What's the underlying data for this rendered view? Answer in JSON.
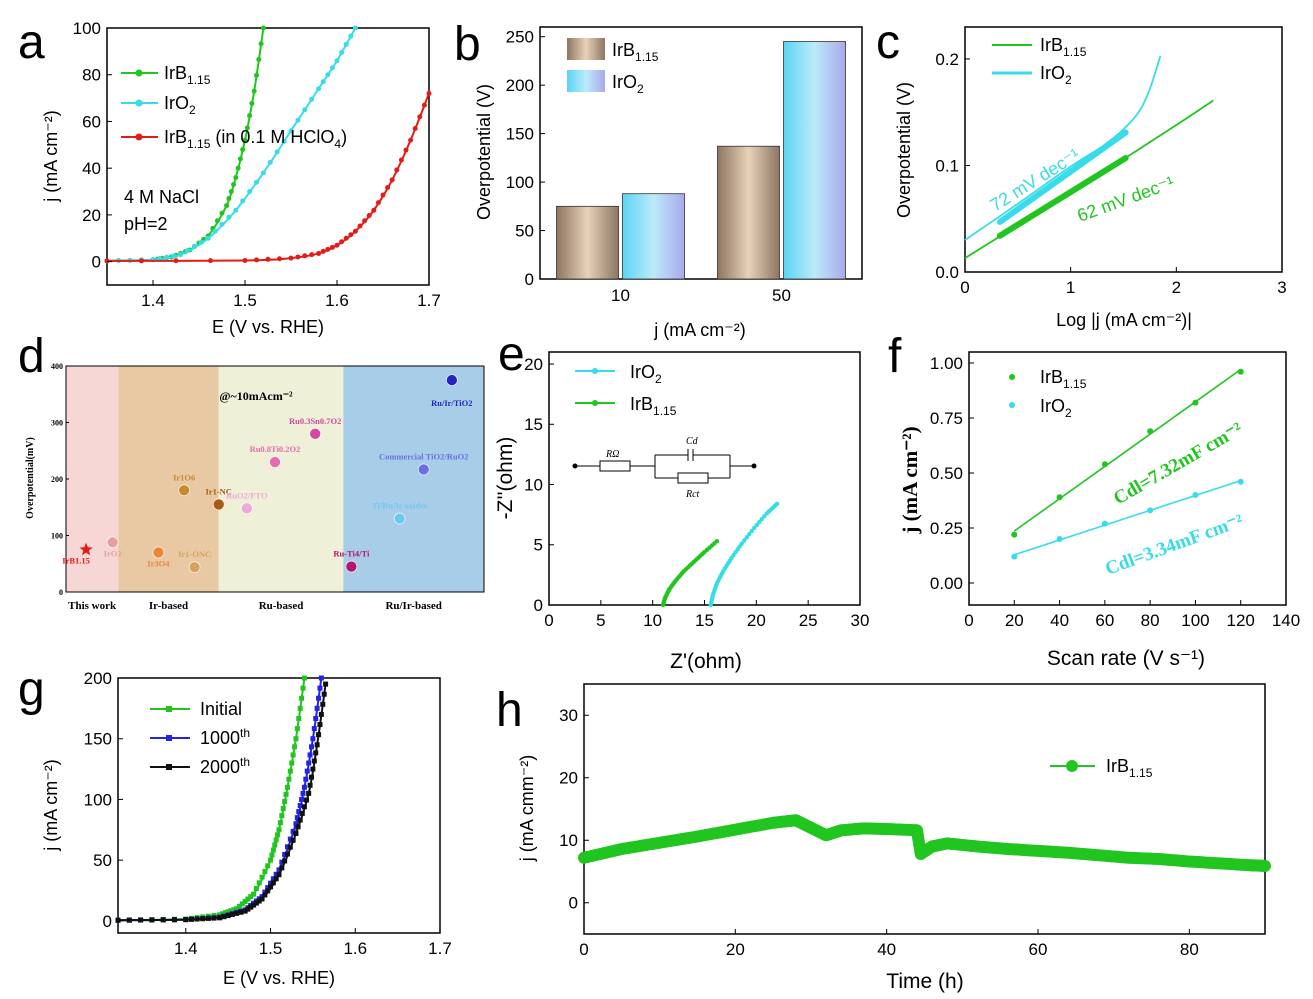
{
  "colors": {
    "green": "#21c51f",
    "cyan": "#36dcea",
    "red": "#e41b17",
    "blue": "#2323e6",
    "black": "#111111",
    "bar_brown": "#bf9f82",
    "bar_cyan": "#7fdcf2"
  },
  "chart_data": [
    {
      "id": "a",
      "panel_label": "a",
      "type": "line",
      "xlabel": "E (V vs. RHE)",
      "ylabel": "j (mA cm⁻²)",
      "xlim": [
        1.35,
        1.7
      ],
      "ylim": [
        -10,
        100
      ],
      "xticks": [
        "1.4",
        "1.5",
        "1.6",
        "1.7"
      ],
      "yticks": [
        "0",
        "20",
        "40",
        "60",
        "80",
        "100"
      ],
      "annotations": [
        "4 M NaCl",
        "pH=2"
      ],
      "series": [
        {
          "name": "IrB1.15",
          "label_main": "IrB",
          "label_sub": "1.15",
          "label_rest": "",
          "color": "#21c51f",
          "x": [
            1.35,
            1.4,
            1.42,
            1.44,
            1.46,
            1.48,
            1.49,
            1.5,
            1.51,
            1.52
          ],
          "y": [
            0.3,
            0.8,
            2,
            5,
            11,
            24,
            36,
            52,
            73,
            100
          ]
        },
        {
          "name": "IrO2",
          "label_main": "IrO",
          "label_sub": "2",
          "label_rest": "",
          "color": "#36dcea",
          "x": [
            1.35,
            1.4,
            1.43,
            1.46,
            1.49,
            1.52,
            1.55,
            1.58,
            1.6,
            1.62
          ],
          "y": [
            0.3,
            0.8,
            3,
            10,
            22,
            38,
            56,
            74,
            86,
            100
          ]
        },
        {
          "name": "IrB1.15 (in 0.1 M HClO4)",
          "label_main": "IrB",
          "label_sub": "1.15",
          "label_rest": " (in 0.1 M HClO",
          "label_sub2": "4",
          "label_end": ")",
          "color": "#e41b17",
          "x": [
            1.35,
            1.5,
            1.55,
            1.58,
            1.6,
            1.62,
            1.64,
            1.66,
            1.68,
            1.7
          ],
          "y": [
            0.3,
            0.5,
            1.5,
            3.5,
            7,
            13,
            22,
            35,
            52,
            72
          ]
        }
      ]
    },
    {
      "id": "b",
      "panel_label": "b",
      "type": "bar",
      "xlabel": "j (mA cm⁻²)",
      "ylabel": "Overpotential (V)",
      "categories": [
        "10",
        "50"
      ],
      "ylim": [
        0,
        260
      ],
      "yticks": [
        "0",
        "50",
        "100",
        "150",
        "200",
        "250"
      ],
      "series": [
        {
          "name": "IrB1.15",
          "label_main": "IrB",
          "label_sub": "1.15",
          "values": [
            75,
            137
          ],
          "color": "#bf9f82"
        },
        {
          "name": "IrO2",
          "label_main": "IrO",
          "label_sub": "2",
          "values": [
            88,
            245
          ],
          "color": "#7fdcf2"
        }
      ]
    },
    {
      "id": "c",
      "panel_label": "c",
      "type": "line",
      "xlabel": "Log |j (mA cm⁻²)|",
      "ylabel": "Overpotential (V)",
      "xlim": [
        0,
        3
      ],
      "ylim": [
        0,
        0.23
      ],
      "xticks": [
        "0",
        "1",
        "2",
        "3"
      ],
      "yticks": [
        "0.0",
        "0.1",
        "0.2"
      ],
      "annotations": [
        "72 mV dec⁻¹",
        "62 mV dec⁻¹"
      ],
      "series": [
        {
          "name": "IrB1.15",
          "label_main": "IrB",
          "label_sub": "1.15",
          "color": "#21c51f",
          "x": [
            0,
            0.5,
            1.0,
            1.5,
            2.0,
            2.35
          ],
          "y": [
            0.013,
            0.044,
            0.075,
            0.106,
            0.138,
            0.161
          ],
          "fit_x": [
            0.33,
            1.52
          ],
          "fit_y": [
            0.034,
            0.107
          ]
        },
        {
          "name": "IrO2",
          "label_main": "IrO",
          "label_sub": "2",
          "color": "#36dcea",
          "x": [
            0,
            0.5,
            1.0,
            1.3,
            1.5,
            1.65,
            1.75,
            1.85
          ],
          "y": [
            0.03,
            0.064,
            0.099,
            0.118,
            0.134,
            0.151,
            0.172,
            0.203
          ],
          "fit_x": [
            0.33,
            1.52
          ],
          "fit_y": [
            0.047,
            0.131
          ]
        }
      ]
    },
    {
      "id": "d",
      "panel_label": "d",
      "type": "scatter",
      "ylabel": "Overpotential(mV)",
      "ylim": [
        0,
        400
      ],
      "yticks": [
        "0",
        "100",
        "200",
        "300",
        "400"
      ],
      "annotation": "@~10mAcm⁻²",
      "groups": [
        "This work",
        "Ir-based",
        "Ru-based",
        "Ru/Ir-based"
      ],
      "group_colors": [
        "#f7d6d6",
        "#e9c8a4",
        "#eef0d8",
        "#a8cde9"
      ],
      "points": [
        {
          "label": "IrB1.15",
          "x": 0.25,
          "y": 75,
          "color": "#e41b17",
          "marker": "star"
        },
        {
          "label": "IrO2",
          "x": 0.58,
          "y": 88,
          "color": "#e7a0a0"
        },
        {
          "label": "Ir3O4",
          "x": 1.15,
          "y": 70,
          "color": "#e8893a"
        },
        {
          "label": "Ir1O6",
          "x": 1.47,
          "y": 180,
          "color": "#c88a2a"
        },
        {
          "label": "Ir1-ONC",
          "x": 1.6,
          "y": 44,
          "color": "#d4a45a"
        },
        {
          "label": "Ir1-NC",
          "x": 1.9,
          "y": 155,
          "color": "#a85a12"
        },
        {
          "label": "RuO2/FTO",
          "x": 2.25,
          "y": 148,
          "color": "#f0a8d8"
        },
        {
          "label": "Ru0.8Ti0.2O2",
          "x": 2.6,
          "y": 230,
          "color": "#e66cb0"
        },
        {
          "label": "Ru0.3Sn0.7O2",
          "x": 3.1,
          "y": 280,
          "color": "#d348a0"
        },
        {
          "label": "Ru-Ti4/Ti",
          "x": 3.55,
          "y": 45,
          "color": "#b01770"
        },
        {
          "label": "Ti/Ru/Ir oxides",
          "x": 4.15,
          "y": 130,
          "color": "#6ec8ee"
        },
        {
          "label": "Commercial TiO2/RuO2",
          "x": 4.45,
          "y": 217,
          "color": "#6c6ee6"
        },
        {
          "label": "Ru/Ir/TiO2",
          "x": 4.8,
          "y": 375,
          "color": "#2424c0"
        }
      ]
    },
    {
      "id": "e",
      "panel_label": "e",
      "type": "line",
      "xlabel": "Z'(ohm)",
      "ylabel": "-Z''(ohm)",
      "xlim": [
        0,
        30
      ],
      "ylim": [
        0,
        21
      ],
      "xticks": [
        "0",
        "5",
        "10",
        "15",
        "20",
        "25",
        "30"
      ],
      "yticks": [
        "0",
        "5",
        "10",
        "15",
        "20"
      ],
      "circuit_labels": [
        "RΩ",
        "Cd",
        "Rct"
      ],
      "series": [
        {
          "name": "IrO2",
          "label_main": "IrO",
          "label_sub": "2",
          "color": "#36dcea",
          "x": [
            15.6,
            15.8,
            16.2,
            16.8,
            17.6,
            18.6,
            19.8,
            21.0,
            22.0
          ],
          "y": [
            0,
            0.8,
            1.8,
            2.8,
            3.9,
            5.1,
            6.4,
            7.6,
            8.4
          ]
        },
        {
          "name": "IrB1.15",
          "label_main": "IrB",
          "label_sub": "1.15",
          "color": "#21c51f",
          "x": [
            11.0,
            11.2,
            11.6,
            12.2,
            13.0,
            14.0,
            15.0,
            16.2
          ],
          "y": [
            0,
            0.6,
            1.3,
            2.0,
            2.8,
            3.6,
            4.4,
            5.3
          ]
        }
      ]
    },
    {
      "id": "f",
      "panel_label": "f",
      "type": "scatter",
      "xlabel": "Scan rate (V s⁻¹)",
      "ylabel": "j (mA cm⁻²)",
      "xlim": [
        0,
        140
      ],
      "ylim": [
        -0.1,
        1.05
      ],
      "xticks": [
        "0",
        "20",
        "40",
        "60",
        "80",
        "100",
        "120",
        "140"
      ],
      "yticks": [
        "0.00",
        "0.25",
        "0.50",
        "0.75",
        "1.00"
      ],
      "annotations": [
        "Cdl=7.32mF cm⁻²",
        "Cdl=3.34mF cm⁻²"
      ],
      "series": [
        {
          "name": "IrB1.15",
          "label_main": "IrB",
          "label_sub": "1.15",
          "color": "#21c51f",
          "x": [
            20,
            40,
            60,
            80,
            100,
            120
          ],
          "y": [
            0.22,
            0.39,
            0.54,
            0.69,
            0.82,
            0.96
          ]
        },
        {
          "name": "IrO2",
          "label_main": "IrO",
          "label_sub": "2",
          "color": "#36dcea",
          "x": [
            20,
            40,
            60,
            80,
            100,
            120
          ],
          "y": [
            0.12,
            0.2,
            0.27,
            0.33,
            0.4,
            0.46
          ]
        }
      ]
    },
    {
      "id": "g",
      "panel_label": "g",
      "type": "line",
      "xlabel": "E (V vs. RHE)",
      "ylabel": "j (mA cm⁻²)",
      "xlim": [
        1.32,
        1.7
      ],
      "ylim": [
        -10,
        200
      ],
      "xticks": [
        "1.4",
        "1.5",
        "1.6",
        "1.7"
      ],
      "yticks": [
        "0",
        "50",
        "100",
        "150",
        "200"
      ],
      "series": [
        {
          "name": "Initial",
          "label_main": "Initial",
          "label_sup": "",
          "color": "#21c51f",
          "x": [
            1.32,
            1.4,
            1.44,
            1.46,
            1.48,
            1.5,
            1.51,
            1.52,
            1.53,
            1.54
          ],
          "y": [
            0.5,
            1.5,
            5,
            10,
            22,
            50,
            75,
            110,
            150,
            200
          ]
        },
        {
          "name": "1000th",
          "label_main": "1000",
          "label_sup": "th",
          "color": "#2323e6",
          "x": [
            1.32,
            1.4,
            1.44,
            1.47,
            1.49,
            1.51,
            1.53,
            1.54,
            1.55,
            1.56
          ],
          "y": [
            0.5,
            1,
            3,
            9,
            20,
            42,
            80,
            110,
            150,
            200
          ]
        },
        {
          "name": "2000th",
          "label_main": "2000",
          "label_sup": "th",
          "color": "#111111",
          "x": [
            1.32,
            1.4,
            1.44,
            1.47,
            1.49,
            1.51,
            1.53,
            1.545,
            1.555,
            1.565
          ],
          "y": [
            0.5,
            1,
            2.5,
            8,
            18,
            38,
            72,
            105,
            145,
            195
          ]
        }
      ]
    },
    {
      "id": "h",
      "panel_label": "h",
      "type": "line",
      "xlabel": "Time (h)",
      "ylabel": "j (mA cmm⁻²)",
      "xlim": [
        0,
        90
      ],
      "ylim": [
        -5,
        35
      ],
      "xticks": [
        "0",
        "20",
        "40",
        "60",
        "80"
      ],
      "yticks": [
        "0",
        "10",
        "20",
        "30"
      ],
      "series": [
        {
          "name": "IrB1.15",
          "label_main": "IrB",
          "label_sub": "1.15",
          "color": "#21c51f",
          "x": [
            0,
            5,
            10,
            15,
            20,
            25,
            28,
            30,
            32,
            34,
            37,
            40,
            44,
            44.5,
            46,
            48,
            52,
            56,
            60,
            64,
            68,
            72,
            76,
            80,
            84,
            88,
            90
          ],
          "y": [
            7.2,
            8.6,
            9.6,
            10.6,
            11.7,
            12.8,
            13.2,
            12.0,
            10.8,
            11.6,
            11.9,
            11.8,
            11.6,
            7.8,
            9.0,
            9.5,
            9.0,
            8.6,
            8.3,
            8.0,
            7.6,
            7.2,
            7.0,
            6.6,
            6.3,
            6.0,
            5.9
          ]
        }
      ]
    }
  ]
}
